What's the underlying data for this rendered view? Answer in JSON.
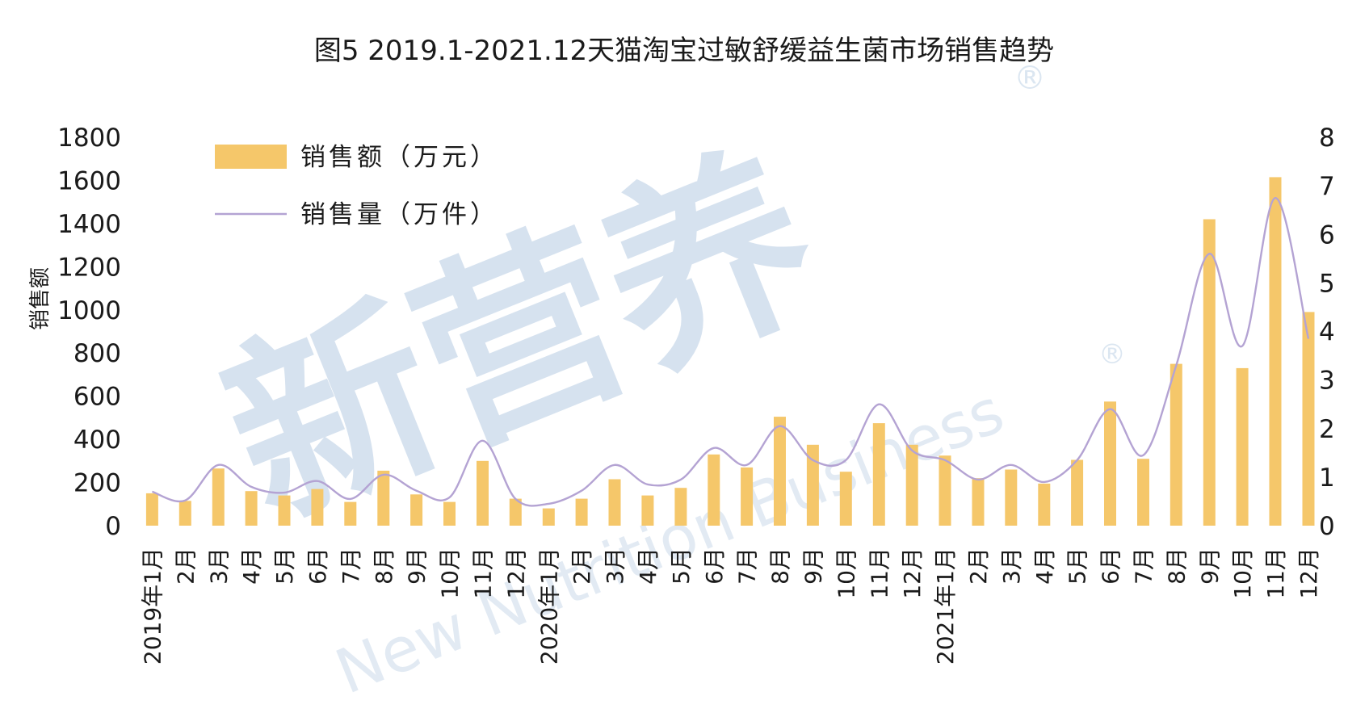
{
  "chart_data": {
    "type": "bar",
    "title": "图5 2019.1-2021.12天猫淘宝过敏舒缓益生菌市场销售趋势",
    "ylabel": "销售额",
    "y2label": "",
    "ylim": [
      0,
      1800
    ],
    "y2lim": [
      0,
      8
    ],
    "y_ticks": [
      "0",
      "200",
      "400",
      "600",
      "800",
      "1000",
      "1200",
      "1400",
      "1600",
      "1800"
    ],
    "y2_ticks": [
      "0",
      "1",
      "2",
      "3",
      "4",
      "5",
      "6",
      "7",
      "8"
    ],
    "categories": [
      "2019年1月",
      "2月",
      "3月",
      "4月",
      "5月",
      "6月",
      "7月",
      "8月",
      "9月",
      "10月",
      "11月",
      "12月",
      "2020年1月",
      "2月",
      "3月",
      "4月",
      "5月",
      "6月",
      "7月",
      "8月",
      "9月",
      "10月",
      "11月",
      "12月",
      "2021年1月",
      "2月",
      "3月",
      "4月",
      "5月",
      "6月",
      "7月",
      "8月",
      "9月",
      "10月",
      "11月",
      "12月"
    ],
    "series": [
      {
        "name": "销售额（万元）",
        "type": "bar",
        "axis": "left",
        "color": "#f5c76a",
        "values": [
          150,
          115,
          265,
          160,
          140,
          170,
          110,
          255,
          145,
          110,
          300,
          125,
          80,
          125,
          215,
          140,
          175,
          330,
          270,
          505,
          375,
          250,
          475,
          375,
          325,
          220,
          260,
          195,
          305,
          575,
          310,
          750,
          1420,
          730,
          1615,
          990
        ]
      },
      {
        "name": "销售量（万件）",
        "type": "line",
        "axis": "right",
        "color": "#b4a3d3",
        "values": [
          0.7,
          0.52,
          1.25,
          0.8,
          0.68,
          0.92,
          0.55,
          1.05,
          0.72,
          0.58,
          1.75,
          0.55,
          0.45,
          0.72,
          1.25,
          0.85,
          0.95,
          1.6,
          1.25,
          2.05,
          1.35,
          1.35,
          2.5,
          1.55,
          1.35,
          0.95,
          1.25,
          0.9,
          1.35,
          2.4,
          1.45,
          3.3,
          5.6,
          3.7,
          6.75,
          3.85
        ]
      }
    ],
    "legend_position": "top-left",
    "grid": false
  },
  "watermark": {
    "main": "新营养",
    "sub": "New Nutrition Business",
    "registered": "®"
  }
}
